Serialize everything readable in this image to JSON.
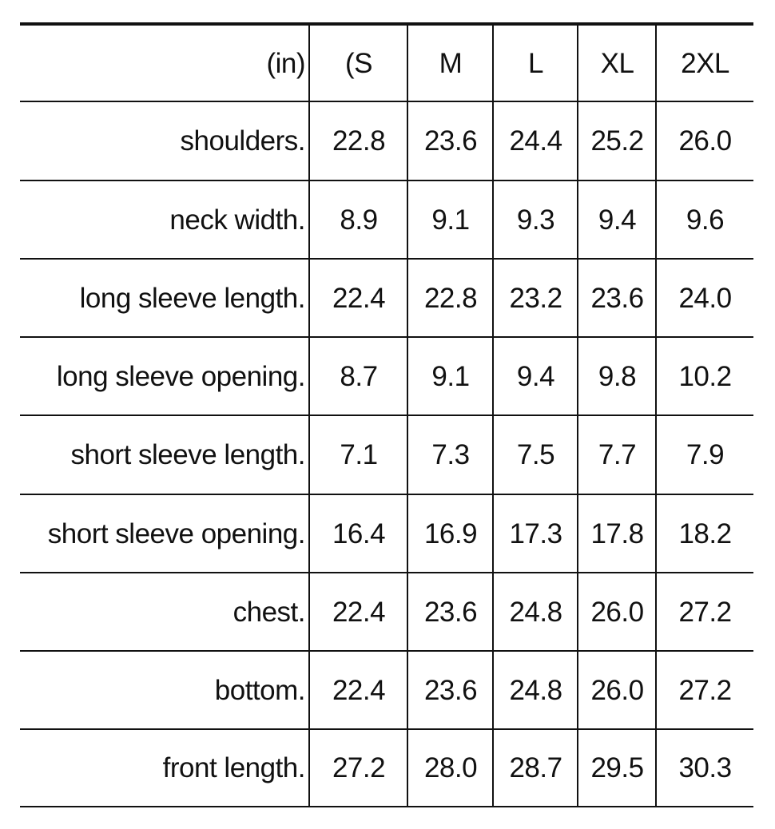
{
  "table": {
    "unit_header": "(in)",
    "columns": [
      "(S",
      "M",
      "L",
      "XL",
      "2XL"
    ],
    "rows": [
      {
        "label": "shoulders.",
        "values": [
          "22.8",
          "23.6",
          "24.4",
          "25.2",
          "26.0"
        ]
      },
      {
        "label": "neck width.",
        "values": [
          "8.9",
          "9.1",
          "9.3",
          "9.4",
          "9.6"
        ]
      },
      {
        "label": "long sleeve length.",
        "values": [
          "22.4",
          "22.8",
          "23.2",
          "23.6",
          "24.0"
        ]
      },
      {
        "label": "long sleeve opening.",
        "values": [
          "8.7",
          "9.1",
          "9.4",
          "9.8",
          "10.2"
        ]
      },
      {
        "label": "short sleeve length.",
        "values": [
          "7.1",
          "7.3",
          "7.5",
          "7.7",
          "7.9"
        ]
      },
      {
        "label": "short sleeve opening.",
        "values": [
          "16.4",
          "16.9",
          "17.3",
          "17.8",
          "18.2"
        ]
      },
      {
        "label": "chest.",
        "values": [
          "22.4",
          "23.6",
          "24.8",
          "26.0",
          "27.2"
        ]
      },
      {
        "label": "bottom.",
        "values": [
          "22.4",
          "23.6",
          "24.8",
          "26.0",
          "27.2"
        ]
      },
      {
        "label": "front length.",
        "values": [
          "27.2",
          "28.0",
          "28.7",
          "29.5",
          "30.3"
        ]
      }
    ]
  }
}
